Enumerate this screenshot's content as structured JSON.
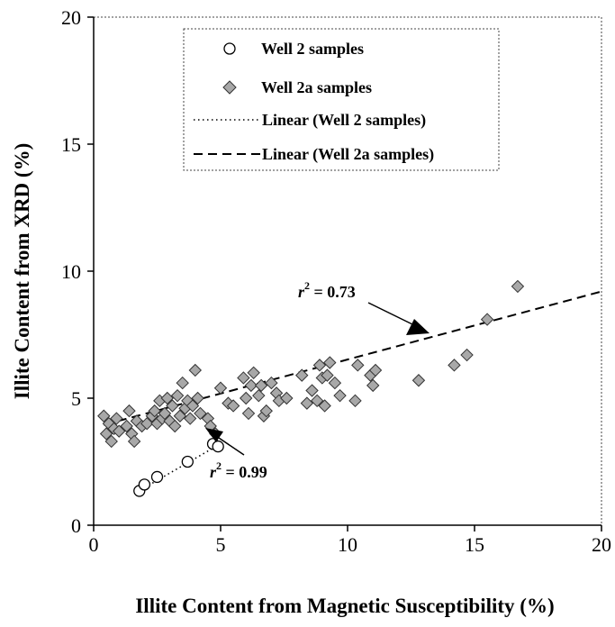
{
  "chart_data": {
    "type": "scatter",
    "title": "",
    "xlabel": "Illite Content from Magnetic Susceptibility (%)",
    "ylabel": "Illite Content from XRD (%)",
    "xlim": [
      0,
      20
    ],
    "ylim": [
      0,
      20
    ],
    "xticks": [
      "0",
      "5",
      "10",
      "15",
      "20"
    ],
    "yticks": [
      "0",
      "5",
      "10",
      "15",
      "20"
    ],
    "grid": false,
    "legend_position": "top-center",
    "legend": {
      "well2": "Well 2 samples",
      "well2a": "Well 2a samples",
      "linear2": "Linear (Well 2 samples)",
      "linear2a": "Linear (Well 2a samples)"
    },
    "series": [
      {
        "name": "Well 2 samples",
        "marker": "open-circle",
        "points": [
          [
            1.8,
            1.35
          ],
          [
            2.0,
            1.6
          ],
          [
            2.5,
            1.9
          ],
          [
            3.7,
            2.5
          ],
          [
            4.7,
            3.2
          ],
          [
            4.9,
            3.1
          ]
        ]
      },
      {
        "name": "Well 2a samples",
        "marker": "diamond",
        "color": "#a8a8a8",
        "points": [
          [
            0.4,
            4.3
          ],
          [
            0.5,
            3.6
          ],
          [
            0.6,
            4.0
          ],
          [
            0.7,
            3.3
          ],
          [
            0.8,
            3.8
          ],
          [
            0.9,
            4.2
          ],
          [
            1.0,
            3.7
          ],
          [
            1.3,
            3.9
          ],
          [
            1.4,
            4.5
          ],
          [
            1.5,
            3.6
          ],
          [
            1.6,
            3.3
          ],
          [
            1.7,
            4.1
          ],
          [
            1.9,
            3.9
          ],
          [
            2.1,
            4.0
          ],
          [
            2.3,
            4.3
          ],
          [
            2.4,
            4.5
          ],
          [
            2.5,
            4.0
          ],
          [
            2.6,
            4.9
          ],
          [
            2.7,
            4.2
          ],
          [
            2.8,
            4.4
          ],
          [
            2.9,
            5.0
          ],
          [
            3.0,
            4.1
          ],
          [
            3.1,
            4.7
          ],
          [
            3.2,
            3.9
          ],
          [
            3.3,
            5.1
          ],
          [
            3.4,
            4.3
          ],
          [
            3.5,
            5.6
          ],
          [
            3.6,
            4.6
          ],
          [
            3.7,
            4.9
          ],
          [
            3.8,
            4.2
          ],
          [
            3.9,
            4.7
          ],
          [
            4.0,
            6.1
          ],
          [
            4.1,
            5.0
          ],
          [
            4.2,
            4.4
          ],
          [
            4.5,
            4.2
          ],
          [
            4.6,
            3.9
          ],
          [
            4.8,
            3.6
          ],
          [
            5.0,
            5.4
          ],
          [
            5.3,
            4.8
          ],
          [
            5.5,
            4.7
          ],
          [
            5.9,
            5.8
          ],
          [
            6.0,
            5.0
          ],
          [
            6.1,
            4.4
          ],
          [
            6.2,
            5.5
          ],
          [
            6.3,
            6.0
          ],
          [
            6.5,
            5.1
          ],
          [
            6.6,
            5.5
          ],
          [
            6.7,
            4.3
          ],
          [
            6.8,
            4.5
          ],
          [
            7.0,
            5.6
          ],
          [
            7.2,
            5.2
          ],
          [
            7.3,
            4.9
          ],
          [
            7.6,
            5.0
          ],
          [
            8.2,
            5.9
          ],
          [
            8.4,
            4.8
          ],
          [
            8.6,
            5.3
          ],
          [
            8.8,
            4.9
          ],
          [
            8.9,
            6.3
          ],
          [
            9.0,
            5.8
          ],
          [
            9.1,
            4.7
          ],
          [
            9.2,
            5.9
          ],
          [
            9.3,
            6.4
          ],
          [
            9.5,
            5.6
          ],
          [
            9.7,
            5.1
          ],
          [
            10.3,
            4.9
          ],
          [
            10.4,
            6.3
          ],
          [
            10.9,
            5.9
          ],
          [
            11.0,
            5.5
          ],
          [
            11.1,
            6.1
          ],
          [
            12.8,
            5.7
          ],
          [
            14.2,
            6.3
          ],
          [
            14.7,
            6.7
          ],
          [
            15.5,
            8.1
          ],
          [
            16.7,
            9.4
          ]
        ]
      }
    ],
    "trendlines": [
      {
        "name": "Linear (Well 2 samples)",
        "style": "dotted",
        "from": [
          1.7,
          1.3
        ],
        "to": [
          4.9,
          3.15
        ]
      },
      {
        "name": "Linear (Well 2a samples)",
        "style": "dashed",
        "from": [
          0.4,
          3.95
        ],
        "to": [
          20,
          9.2
        ]
      }
    ],
    "annotations": [
      {
        "text_r": "r",
        "text_sup": "2",
        "text_val": " = 0.73",
        "x": 8.3,
        "y": 9.4
      },
      {
        "text_r": "r",
        "text_sup": "2",
        "text_val": " = 0.99",
        "x": 5.1,
        "y": 0.85
      }
    ]
  }
}
